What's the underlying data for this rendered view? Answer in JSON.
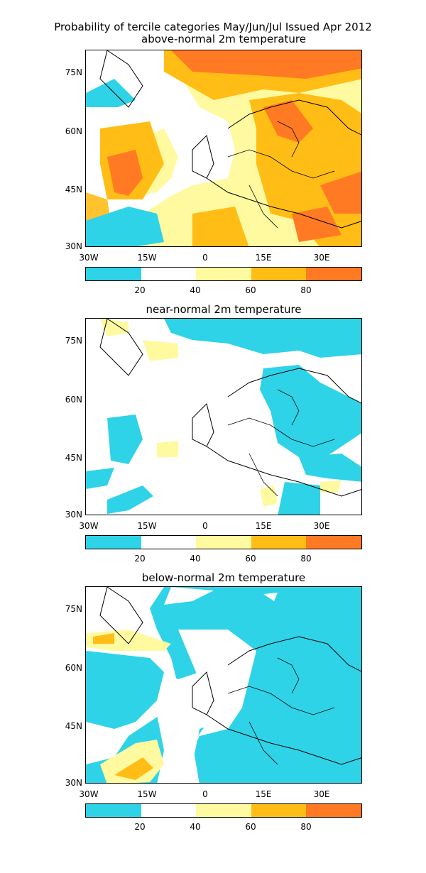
{
  "title_line1": "Probability of tercile categories May/Jun/Jul Issued Apr 2012",
  "panels": [
    {
      "subtitle": "above-normal 2m temperature"
    },
    {
      "subtitle": "near-normal 2m temperature"
    },
    {
      "subtitle": "below-normal 2m temperature"
    }
  ],
  "axes": {
    "lat_labels": [
      "75N",
      "60N",
      "45N",
      "30N"
    ],
    "lon_labels": [
      "30W",
      "15W",
      "0",
      "15E",
      "30E"
    ]
  },
  "colorbar": {
    "labels": [
      "20",
      "40",
      "60",
      "80"
    ],
    "colors": [
      "#2ed3e8",
      "#ffffff",
      "#fffaa0",
      "#ffbd16",
      "#ff7a22"
    ]
  },
  "map_data": {
    "type": "probability_map",
    "region": "Europe / North Atlantic",
    "lon_range": [
      -30,
      40
    ],
    "lat_range": [
      29,
      81
    ]
  }
}
